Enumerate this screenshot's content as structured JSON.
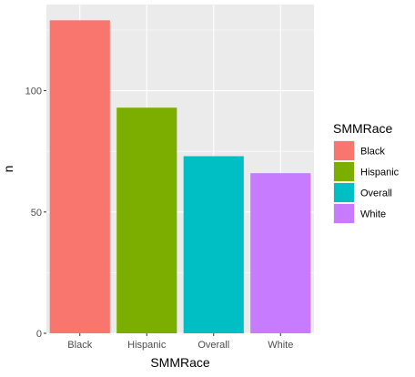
{
  "chart_data": {
    "type": "bar",
    "categories": [
      "Black",
      "Hispanic",
      "Overall",
      "White"
    ],
    "values": [
      129,
      93,
      73,
      66
    ],
    "colors": [
      "#F8766D",
      "#7CAE00",
      "#00BFC4",
      "#C77CFF"
    ],
    "xlabel": "SMMRace",
    "ylabel": "n",
    "ylim": [
      0,
      135.5
    ],
    "yticks": [
      0,
      50,
      100
    ],
    "grid": true,
    "legend": {
      "title": "SMMRace",
      "placement": "right",
      "entries": [
        "Black",
        "Hispanic",
        "Overall",
        "White"
      ]
    }
  }
}
